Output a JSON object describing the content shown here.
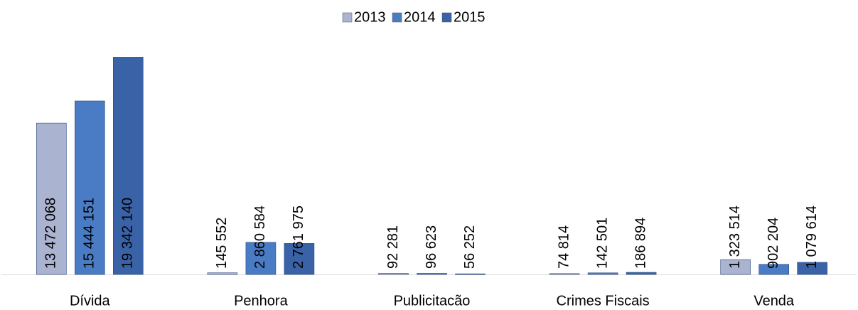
{
  "chart_data": {
    "type": "bar",
    "categories": [
      "Dívida",
      "Penhora",
      "Publicitacão",
      "Crimes Fiscais",
      "Venda"
    ],
    "series": [
      {
        "name": "2013",
        "color": "#aab3cf",
        "values": [
          13472068,
          145552,
          92281,
          74814,
          1323514
        ],
        "value_labels": [
          "13 472 068",
          "145 552",
          "92 281",
          "74 814",
          "1 323 514"
        ]
      },
      {
        "name": "2014",
        "color": "#4a7cc6",
        "values": [
          15444151,
          2860584,
          96623,
          142501,
          902204
        ],
        "value_labels": [
          "15 444 151",
          "2 860 584",
          "96 623",
          "142 501",
          "902 204"
        ]
      },
      {
        "name": "2015",
        "color": "#3a62a6",
        "values": [
          19342140,
          2761975,
          56252,
          186894,
          1079614
        ],
        "value_labels": [
          "19 342 140",
          "2 761 975",
          "56 252",
          "186 894",
          "1 079 614"
        ]
      }
    ],
    "ylim": [
      0,
      20000000
    ],
    "legend": "top"
  }
}
